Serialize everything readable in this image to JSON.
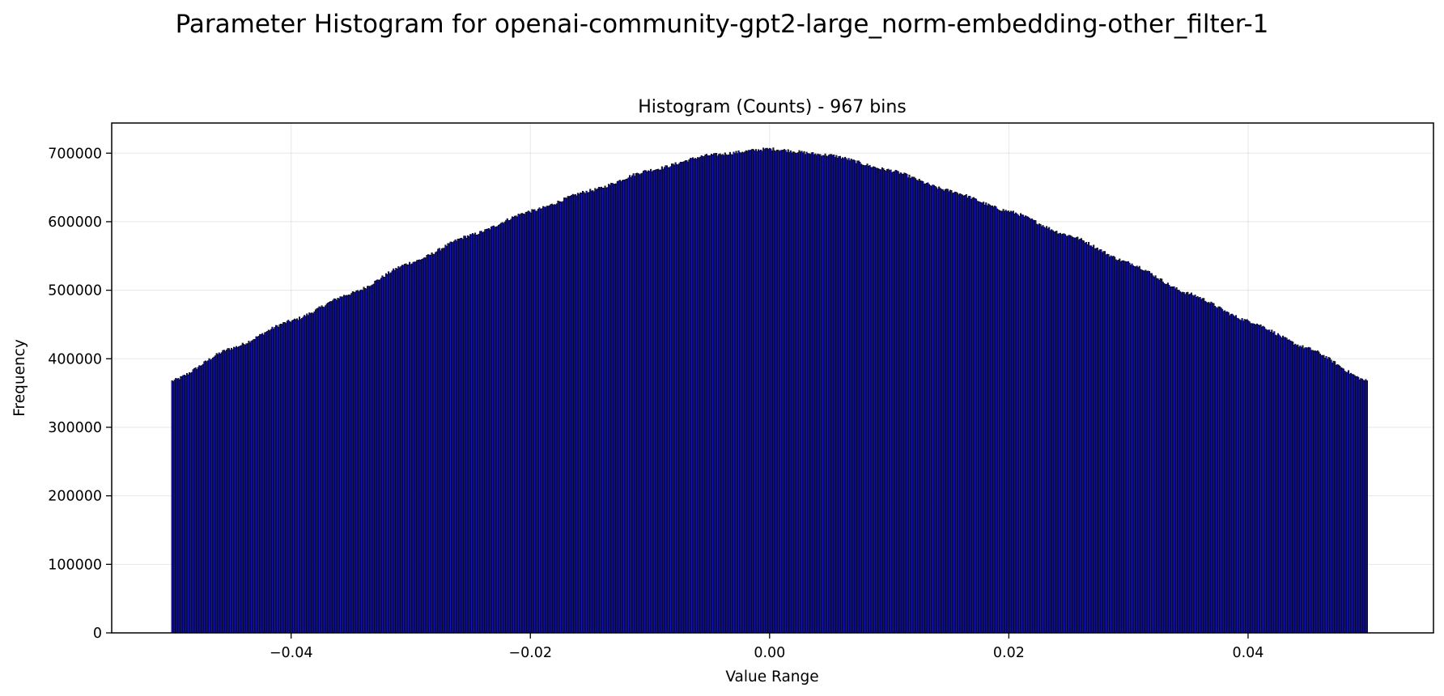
{
  "figure_title": "Parameter Histogram for openai-community-gpt2-large_norm-embedding-other_filter-1",
  "chart_data": {
    "type": "bar",
    "title": "Histogram (Counts) - 967 bins",
    "xlabel": "Value Range",
    "ylabel": "Frequency",
    "bins": 967,
    "x_range": [
      -0.05,
      0.05
    ],
    "xlim": [
      -0.055,
      0.0555
    ],
    "ylim": [
      0,
      744000
    ],
    "xticks": [
      -0.04,
      -0.02,
      0.0,
      0.02,
      0.04
    ],
    "xtick_labels": [
      "−0.04",
      "−0.02",
      "0.00",
      "0.02",
      "0.04"
    ],
    "yticks": [
      0,
      100000,
      200000,
      300000,
      400000,
      500000,
      600000,
      700000
    ],
    "ytick_labels": [
      "0",
      "100000",
      "200000",
      "300000",
      "400000",
      "500000",
      "600000",
      "700000"
    ],
    "profile": {
      "x": [
        -0.05,
        -0.045,
        -0.04,
        -0.035,
        -0.03,
        -0.025,
        -0.02,
        -0.015,
        -0.01,
        -0.005,
        0.0,
        0.005,
        0.01,
        0.015,
        0.02,
        0.025,
        0.03,
        0.035,
        0.04,
        0.045,
        0.05
      ],
      "y": [
        367000,
        415000,
        455000,
        495000,
        540000,
        580000,
        615000,
        645000,
        675000,
        697000,
        706000,
        697000,
        675000,
        645000,
        615000,
        580000,
        540000,
        495000,
        455000,
        415000,
        367000
      ]
    },
    "grid": true,
    "bar_color": "#1515b8",
    "edge_color": "#000000",
    "legend": "none"
  }
}
